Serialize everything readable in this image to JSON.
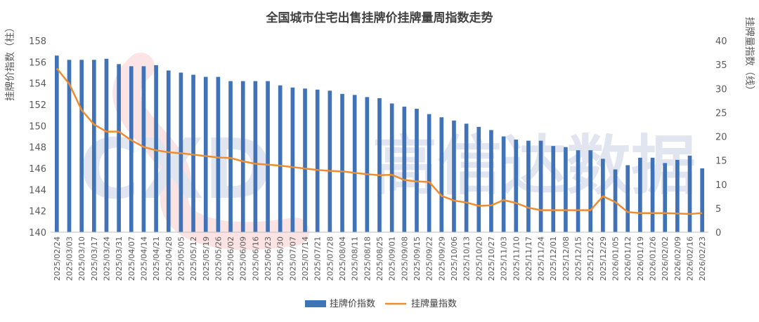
{
  "watermark": {
    "latin": "CXD",
    "cjk": "高信达数据"
  },
  "chart_data": {
    "type": "bar",
    "title": "全国城市住宅出售挂牌价挂牌量周指数走势",
    "ylabel_left": "挂牌价指数（柱）",
    "ylabel_right": "挂牌量指数（线）",
    "left_ylim": [
      140,
      158
    ],
    "left_ticks": [
      140,
      142,
      144,
      146,
      148,
      150,
      152,
      154,
      156,
      158
    ],
    "right_ylim": [
      0,
      40
    ],
    "right_ticks": [
      0,
      5,
      10,
      15,
      20,
      25,
      30,
      35,
      40
    ],
    "grid": false,
    "legend_position": "bottom",
    "categories": [
      "2025/02/24",
      "2025/03/03",
      "2025/03/10",
      "2025/03/17",
      "2025/03/24",
      "2025/03/31",
      "2025/04/07",
      "2025/04/14",
      "2025/04/21",
      "2025/04/28",
      "2025/05/05",
      "2025/05/12",
      "2025/05/19",
      "2025/05/26",
      "2025/06/02",
      "2025/06/09",
      "2025/06/16",
      "2025/06/23",
      "2025/06/30",
      "2025/07/07",
      "2025/07/14",
      "2025/07/21",
      "2025/07/28",
      "2025/08/04",
      "2025/08/11",
      "2025/08/18",
      "2025/08/25",
      "2025/09/01",
      "2025/09/08",
      "2025/09/15",
      "2025/09/22",
      "2025/09/29",
      "2025/10/06",
      "2025/10/13",
      "2025/10/20",
      "2025/10/27",
      "2025/11/03",
      "2025/11/10",
      "2025/11/17",
      "2025/11/24",
      "2025/12/01",
      "2025/12/08",
      "2025/12/15",
      "2025/12/22",
      "2025/12/29",
      "2026/01/05",
      "2026/01/12",
      "2026/01/19",
      "2026/01/26",
      "2026/02/02",
      "2026/02/09",
      "2026/02/16",
      "2026/02/23"
    ],
    "series": [
      {
        "name": "挂牌价指数",
        "kind": "bar",
        "axis": "left",
        "color": "#3f72b6",
        "values": [
          156.6,
          156.2,
          156.2,
          156.2,
          156.3,
          155.8,
          155.6,
          155.6,
          155.7,
          155.2,
          155.0,
          154.8,
          154.6,
          154.6,
          154.2,
          154.2,
          154.2,
          154.2,
          153.8,
          153.6,
          153.5,
          153.4,
          153.3,
          153.0,
          152.9,
          152.7,
          152.6,
          152.1,
          151.8,
          151.6,
          151.1,
          150.8,
          150.5,
          150.2,
          149.9,
          149.6,
          149.0,
          148.7,
          148.6,
          148.6,
          148.1,
          148.0,
          147.7,
          147.7,
          146.9,
          145.9,
          146.3,
          147.0,
          147.0,
          146.5,
          146.8,
          147.2,
          146.0
        ]
      },
      {
        "name": "挂牌量指数",
        "kind": "line",
        "axis": "right",
        "color": "#ed8d31",
        "values": [
          34.2,
          31.0,
          25.5,
          22.5,
          21.0,
          21.0,
          19.2,
          17.8,
          17.1,
          16.7,
          16.5,
          16.2,
          15.9,
          15.6,
          15.5,
          14.8,
          14.3,
          14.1,
          13.9,
          13.6,
          13.3,
          13.0,
          12.8,
          12.7,
          12.4,
          12.1,
          11.9,
          12.0,
          10.9,
          10.6,
          10.5,
          7.6,
          6.6,
          6.2,
          5.5,
          5.6,
          6.7,
          6.1,
          5.1,
          4.6,
          4.6,
          4.6,
          4.6,
          4.6,
          7.5,
          6.3,
          4.2,
          4.0,
          4.0,
          4.0,
          3.9,
          3.8,
          4.0
        ]
      }
    ]
  }
}
